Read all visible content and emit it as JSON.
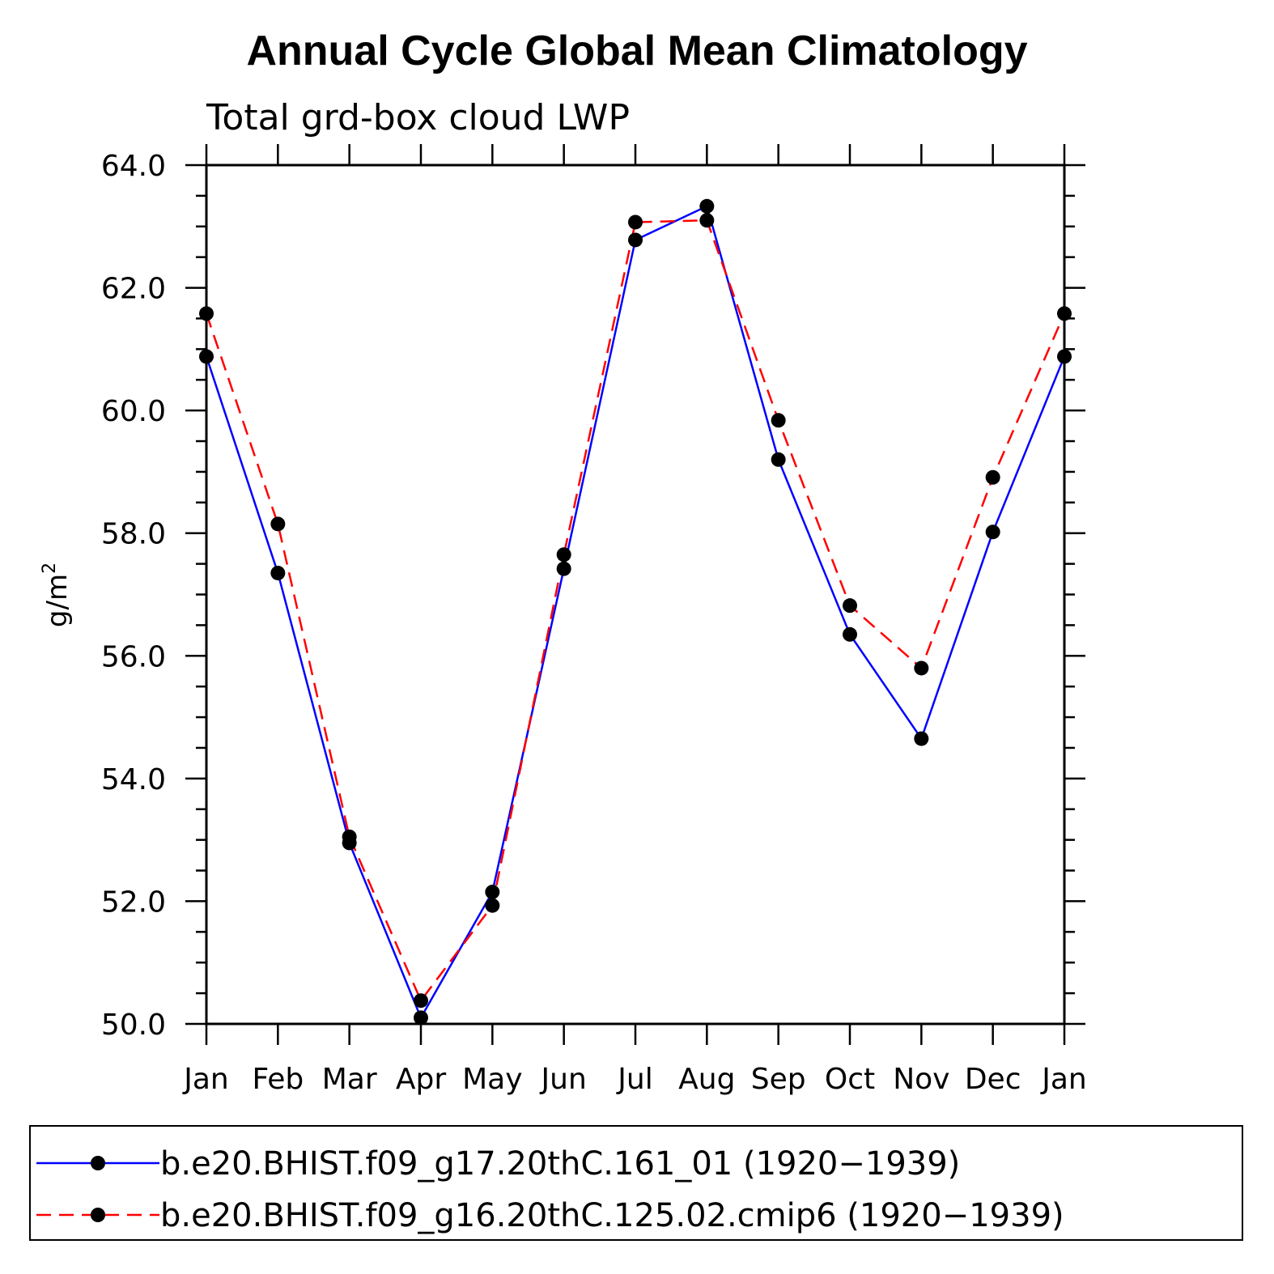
{
  "chart_data": {
    "type": "line",
    "title": "Annual Cycle Global Mean Climatology",
    "subtitle": "Total grd-box cloud LWP",
    "xlabel": "",
    "ylabel": "g/m",
    "ylabel_superscript": "2",
    "ylim": [
      50.0,
      64.0
    ],
    "yticks": [
      50.0,
      52.0,
      54.0,
      56.0,
      58.0,
      60.0,
      62.0,
      64.0
    ],
    "ytick_labels": [
      "50.0",
      "52.0",
      "54.0",
      "56.0",
      "58.0",
      "60.0",
      "62.0",
      "64.0"
    ],
    "categories": [
      "Jan",
      "Feb",
      "Mar",
      "Apr",
      "May",
      "Jun",
      "Jul",
      "Aug",
      "Sep",
      "Oct",
      "Nov",
      "Dec",
      "Jan"
    ],
    "series": [
      {
        "name": "b.e20.BHIST.f09_g17.20thC.161_01 (1920−1939)",
        "color": "#0000ff",
        "dash": "solid",
        "values": [
          60.88,
          57.35,
          52.95,
          50.1,
          52.15,
          57.42,
          62.78,
          63.33,
          59.2,
          56.35,
          54.65,
          58.02,
          60.88
        ]
      },
      {
        "name": "b.e20.BHIST.f09_g16.20thC.125.02.cmip6 (1920−1939)",
        "color": "#ff0000",
        "dash": "dashed",
        "values": [
          61.58,
          58.15,
          53.05,
          50.38,
          51.93,
          57.65,
          63.07,
          63.1,
          59.84,
          56.82,
          55.8,
          58.91,
          61.58
        ]
      }
    ],
    "legend_position": "bottom"
  }
}
